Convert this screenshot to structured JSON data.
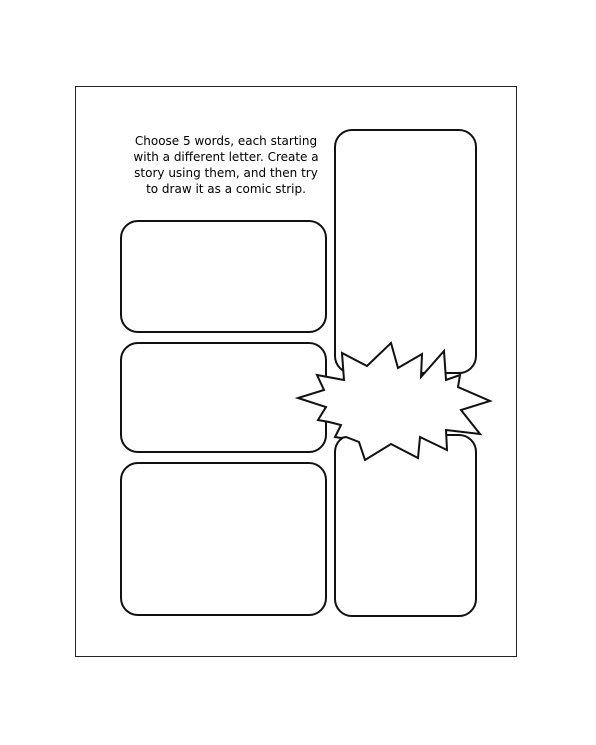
{
  "worksheet": {
    "instructions": {
      "lines": [
        "Choose 5 words, each starting",
        "with a different letter. Create a",
        "story using them, and then try",
        "to draw it as a comic strip."
      ]
    },
    "panels": [
      {
        "id": "panel-1",
        "shape": "rounded-rectangle"
      },
      {
        "id": "panel-2",
        "shape": "rounded-rectangle"
      },
      {
        "id": "panel-3",
        "shape": "rounded-rectangle"
      },
      {
        "id": "panel-4",
        "shape": "rounded-rectangle"
      },
      {
        "id": "panel-5",
        "shape": "rounded-rectangle"
      }
    ],
    "burst_shape": "starburst-speech-balloon",
    "colors": {
      "stroke": "#111111",
      "background": "#ffffff"
    }
  }
}
